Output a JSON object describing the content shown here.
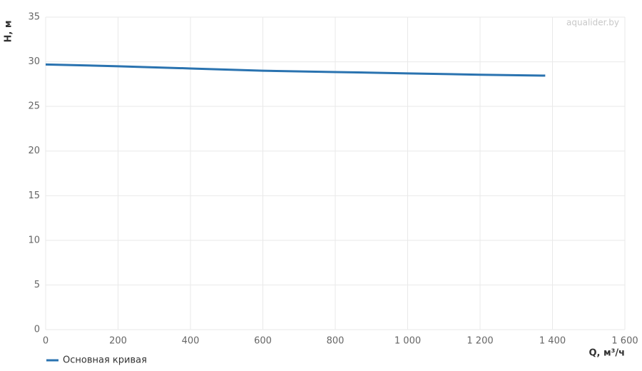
{
  "chart_data": {
    "type": "line",
    "x": [
      0,
      200,
      400,
      600,
      800,
      1000,
      1200,
      1380
    ],
    "series": [
      {
        "name": "Основная кривая",
        "color": "#2a73b0",
        "values": [
          29.7,
          29.5,
          29.25,
          29.0,
          28.85,
          28.7,
          28.55,
          28.45
        ]
      }
    ],
    "xlim": [
      0,
      1600
    ],
    "xticks": [
      0,
      200,
      400,
      600,
      800,
      {
        "value": 1000,
        "label": "1 000"
      },
      {
        "value": 1200,
        "label": "1 200"
      },
      {
        "value": 1400,
        "label": "1 400"
      },
      {
        "value": 1600,
        "label": "1 600"
      }
    ],
    "ylim": [
      0,
      35
    ],
    "yticks": [
      0,
      5,
      10,
      15,
      20,
      25,
      30,
      35
    ],
    "x_label": "Q, м³/ч",
    "y_label": "H, м",
    "watermark": "aqualider.by",
    "grid": true,
    "legend": "bottom-left"
  }
}
